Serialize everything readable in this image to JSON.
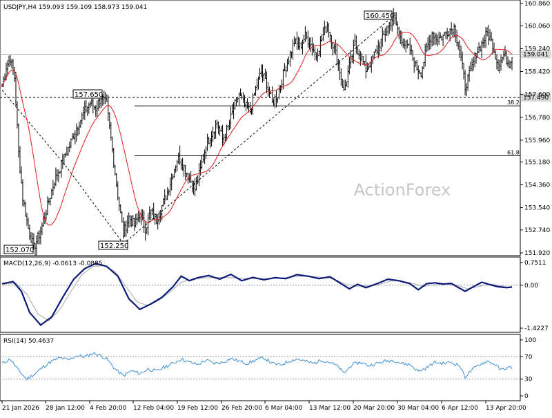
{
  "chart_data": {
    "type": "candlestick",
    "symbol_header": "USDJPY,H4  159.093 159.109 158.973 159.041",
    "watermark": "ActionForex",
    "current_price": 159.041,
    "current_price_label": "159.041",
    "colors": {
      "candle": "#000000",
      "ma": "#e31a1c",
      "macd": "#0b1a7a",
      "signal": "#a8a8a8",
      "rsi": "#3a8fd6",
      "current_box": "#d9d9d9",
      "level_box": "#d9d9d9"
    },
    "main_axis": {
      "min": 151.92,
      "max": 160.86,
      "ticks": [
        "160.860",
        "160.060",
        "159.240",
        "158.420",
        "157.600",
        "156.780",
        "155.960",
        "155.180",
        "154.360",
        "153.540",
        "152.740",
        "151.920"
      ]
    },
    "macd": {
      "label": "MACD(12,26,9) -0.0613 -0.0885",
      "axis_ticks": [
        "0.7511",
        "0.00",
        "-1.4227"
      ],
      "min": -1.4227,
      "max": 0.7511
    },
    "rsi": {
      "label": "RSI(14) 50.4637",
      "axis_ticks": [
        "100",
        "70",
        "30",
        "0"
      ],
      "levels": [
        70,
        30
      ]
    },
    "x_labels": [
      "21 Jan 2026",
      "28 Jan 12:00",
      "4 Feb 20:00",
      "12 Feb 04:00",
      "19 Feb 12:00",
      "26 Feb 20:00",
      "6 Mar 04:00",
      "13 Mar 12:00",
      "20 Mar 20:00",
      "30 Mar 04:00",
      "6 Apr 12:00",
      "13 Apr 20:00"
    ],
    "annotations": [
      {
        "text": "160.450",
        "price": 160.45
      },
      {
        "text": "157.650",
        "price": 157.65
      },
      {
        "text": "152.250",
        "price": 152.25
      },
      {
        "text": "152.070",
        "price": 152.07
      }
    ],
    "levels": [
      {
        "label": "157.490",
        "value": 157.49
      },
      {
        "label": "38.2",
        "value": 157.19
      },
      {
        "label": "61.8",
        "value": 155.4
      }
    ],
    "trendlines": [
      {
        "from": [
          0,
          157.75
        ],
        "to": [
          46,
          155.05
        ]
      },
      {
        "from": [
          46,
          155.05
        ],
        "to": [
          88,
          152.25
        ]
      },
      {
        "from": [
          88,
          152.25
        ],
        "to": [
          285,
          160.45
        ]
      }
    ],
    "path_points": [
      [
        0,
        157.9
      ],
      [
        3,
        158.6
      ],
      [
        6,
        158.9
      ],
      [
        9,
        158.2
      ],
      [
        12,
        155.5
      ],
      [
        15,
        153.9
      ],
      [
        19,
        152.8
      ],
      [
        23,
        152.1
      ],
      [
        28,
        152.7
      ],
      [
        33,
        153.6
      ],
      [
        38,
        154.5
      ],
      [
        44,
        155.2
      ],
      [
        50,
        155.9
      ],
      [
        55,
        156.5
      ],
      [
        60,
        157.0
      ],
      [
        64,
        157.3
      ],
      [
        68,
        157.1
      ],
      [
        72,
        157.5
      ],
      [
        76,
        157.2
      ],
      [
        80,
        155.6
      ],
      [
        84,
        154.0
      ],
      [
        88,
        152.6
      ],
      [
        92,
        153.2
      ],
      [
        96,
        152.9
      ],
      [
        100,
        153.3
      ],
      [
        104,
        152.8
      ],
      [
        108,
        153.4
      ],
      [
        112,
        153.1
      ],
      [
        116,
        153.6
      ],
      [
        120,
        154.1
      ],
      [
        124,
        154.8
      ],
      [
        128,
        155.4
      ],
      [
        132,
        155.0
      ],
      [
        136,
        154.6
      ],
      [
        140,
        154.2
      ],
      [
        144,
        154.9
      ],
      [
        148,
        155.8
      ],
      [
        152,
        156.2
      ],
      [
        156,
        156.6
      ],
      [
        160,
        156.0
      ],
      [
        164,
        156.4
      ],
      [
        168,
        157.1
      ],
      [
        172,
        157.6
      ],
      [
        176,
        157.2
      ],
      [
        180,
        157.0
      ],
      [
        184,
        157.8
      ],
      [
        188,
        158.4
      ],
      [
        192,
        158.0
      ],
      [
        196,
        157.3
      ],
      [
        200,
        157.6
      ],
      [
        204,
        158.3
      ],
      [
        208,
        158.9
      ],
      [
        212,
        159.5
      ],
      [
        216,
        159.3
      ],
      [
        220,
        159.7
      ],
      [
        224,
        159.4
      ],
      [
        228,
        159.0
      ],
      [
        232,
        159.6
      ],
      [
        236,
        160.1
      ],
      [
        240,
        159.4
      ],
      [
        244,
        158.7
      ],
      [
        248,
        157.7
      ],
      [
        252,
        158.6
      ],
      [
        256,
        159.4
      ],
      [
        260,
        159.0
      ],
      [
        264,
        158.5
      ],
      [
        268,
        158.8
      ],
      [
        272,
        159.2
      ],
      [
        276,
        159.6
      ],
      [
        280,
        160.0
      ],
      [
        284,
        160.4
      ],
      [
        288,
        159.8
      ],
      [
        292,
        159.4
      ],
      [
        296,
        159.2
      ],
      [
        300,
        158.6
      ],
      [
        304,
        158.4
      ],
      [
        308,
        159.2
      ],
      [
        312,
        159.8
      ],
      [
        316,
        159.6
      ],
      [
        320,
        159.7
      ],
      [
        324,
        159.9
      ],
      [
        328,
        160.0
      ],
      [
        332,
        159.2
      ],
      [
        336,
        157.9
      ],
      [
        340,
        158.4
      ],
      [
        344,
        159.1
      ],
      [
        348,
        159.4
      ],
      [
        352,
        159.8
      ],
      [
        356,
        159.4
      ],
      [
        360,
        158.6
      ],
      [
        364,
        159.0
      ],
      [
        368,
        158.7
      ],
      [
        370,
        159.04
      ]
    ],
    "macd_points": [
      [
        0,
        0.05
      ],
      [
        8,
        0.12
      ],
      [
        14,
        -0.2
      ],
      [
        20,
        -0.9
      ],
      [
        28,
        -1.32
      ],
      [
        36,
        -1.05
      ],
      [
        44,
        -0.4
      ],
      [
        52,
        0.2
      ],
      [
        60,
        0.55
      ],
      [
        68,
        0.72
      ],
      [
        76,
        0.62
      ],
      [
        84,
        0.3
      ],
      [
        92,
        -0.45
      ],
      [
        100,
        -0.8
      ],
      [
        108,
        -0.62
      ],
      [
        116,
        -0.4
      ],
      [
        124,
        -0.05
      ],
      [
        130,
        0.3
      ],
      [
        136,
        0.15
      ],
      [
        142,
        0.25
      ],
      [
        150,
        0.32
      ],
      [
        158,
        0.2
      ],
      [
        166,
        0.36
      ],
      [
        174,
        0.15
      ],
      [
        182,
        0.26
      ],
      [
        190,
        0.18
      ],
      [
        198,
        0.25
      ],
      [
        206,
        0.22
      ],
      [
        214,
        0.35
      ],
      [
        222,
        0.3
      ],
      [
        230,
        0.22
      ],
      [
        238,
        0.28
      ],
      [
        246,
        0.05
      ],
      [
        252,
        -0.12
      ],
      [
        258,
        0.03
      ],
      [
        264,
        -0.08
      ],
      [
        272,
        0.05
      ],
      [
        280,
        0.2
      ],
      [
        288,
        0.15
      ],
      [
        296,
        0.05
      ],
      [
        302,
        -0.15
      ],
      [
        308,
        0.05
      ],
      [
        314,
        0.08
      ],
      [
        320,
        0.04
      ],
      [
        326,
        0.06
      ],
      [
        332,
        -0.1
      ],
      [
        336,
        -0.2
      ],
      [
        342,
        -0.05
      ],
      [
        348,
        0.1
      ],
      [
        354,
        0.02
      ],
      [
        360,
        -0.05
      ],
      [
        366,
        -0.08
      ],
      [
        370,
        -0.06
      ]
    ],
    "signal_points": [
      [
        0,
        0.02
      ],
      [
        10,
        0.08
      ],
      [
        18,
        -0.3
      ],
      [
        26,
        -0.95
      ],
      [
        34,
        -1.18
      ],
      [
        42,
        -0.8
      ],
      [
        50,
        -0.2
      ],
      [
        58,
        0.35
      ],
      [
        66,
        0.62
      ],
      [
        74,
        0.65
      ],
      [
        82,
        0.45
      ],
      [
        90,
        -0.05
      ],
      [
        98,
        -0.55
      ],
      [
        106,
        -0.68
      ],
      [
        114,
        -0.5
      ],
      [
        122,
        -0.22
      ],
      [
        130,
        0.1
      ],
      [
        138,
        0.2
      ],
      [
        146,
        0.24
      ],
      [
        154,
        0.26
      ],
      [
        162,
        0.26
      ],
      [
        170,
        0.24
      ],
      [
        178,
        0.22
      ],
      [
        186,
        0.22
      ],
      [
        194,
        0.22
      ],
      [
        202,
        0.23
      ],
      [
        210,
        0.27
      ],
      [
        218,
        0.3
      ],
      [
        226,
        0.28
      ],
      [
        234,
        0.26
      ],
      [
        242,
        0.18
      ],
      [
        250,
        0.02
      ],
      [
        258,
        -0.03
      ],
      [
        266,
        -0.03
      ],
      [
        274,
        0.03
      ],
      [
        282,
        0.14
      ],
      [
        290,
        0.14
      ],
      [
        298,
        0.06
      ],
      [
        306,
        -0.04
      ],
      [
        314,
        0.02
      ],
      [
        322,
        0.04
      ],
      [
        330,
        0.0
      ],
      [
        338,
        -0.12
      ],
      [
        346,
        -0.04
      ],
      [
        354,
        0.04
      ],
      [
        362,
        -0.02
      ],
      [
        370,
        -0.09
      ]
    ],
    "rsi_points": [
      [
        0,
        58
      ],
      [
        6,
        66
      ],
      [
        12,
        45
      ],
      [
        18,
        30
      ],
      [
        24,
        40
      ],
      [
        30,
        52
      ],
      [
        36,
        62
      ],
      [
        42,
        68
      ],
      [
        48,
        64
      ],
      [
        54,
        72
      ],
      [
        60,
        70
      ],
      [
        66,
        76
      ],
      [
        70,
        74
      ],
      [
        76,
        66
      ],
      [
        82,
        48
      ],
      [
        88,
        36
      ],
      [
        94,
        45
      ],
      [
        100,
        40
      ],
      [
        106,
        48
      ],
      [
        112,
        44
      ],
      [
        118,
        52
      ],
      [
        124,
        58
      ],
      [
        130,
        66
      ],
      [
        136,
        60
      ],
      [
        142,
        56
      ],
      [
        148,
        64
      ],
      [
        154,
        58
      ],
      [
        160,
        60
      ],
      [
        166,
        67
      ],
      [
        172,
        62
      ],
      [
        178,
        58
      ],
      [
        184,
        64
      ],
      [
        190,
        68
      ],
      [
        196,
        58
      ],
      [
        202,
        55
      ],
      [
        208,
        62
      ],
      [
        214,
        66
      ],
      [
        220,
        62
      ],
      [
        226,
        58
      ],
      [
        232,
        64
      ],
      [
        238,
        60
      ],
      [
        244,
        52
      ],
      [
        248,
        40
      ],
      [
        254,
        56
      ],
      [
        260,
        60
      ],
      [
        266,
        54
      ],
      [
        272,
        58
      ],
      [
        278,
        62
      ],
      [
        284,
        64
      ],
      [
        290,
        58
      ],
      [
        296,
        56
      ],
      [
        302,
        44
      ],
      [
        308,
        50
      ],
      [
        314,
        60
      ],
      [
        320,
        58
      ],
      [
        326,
        60
      ],
      [
        332,
        54
      ],
      [
        336,
        34
      ],
      [
        340,
        44
      ],
      [
        346,
        56
      ],
      [
        352,
        62
      ],
      [
        358,
        56
      ],
      [
        362,
        46
      ],
      [
        366,
        50
      ],
      [
        370,
        50.46
      ]
    ]
  }
}
